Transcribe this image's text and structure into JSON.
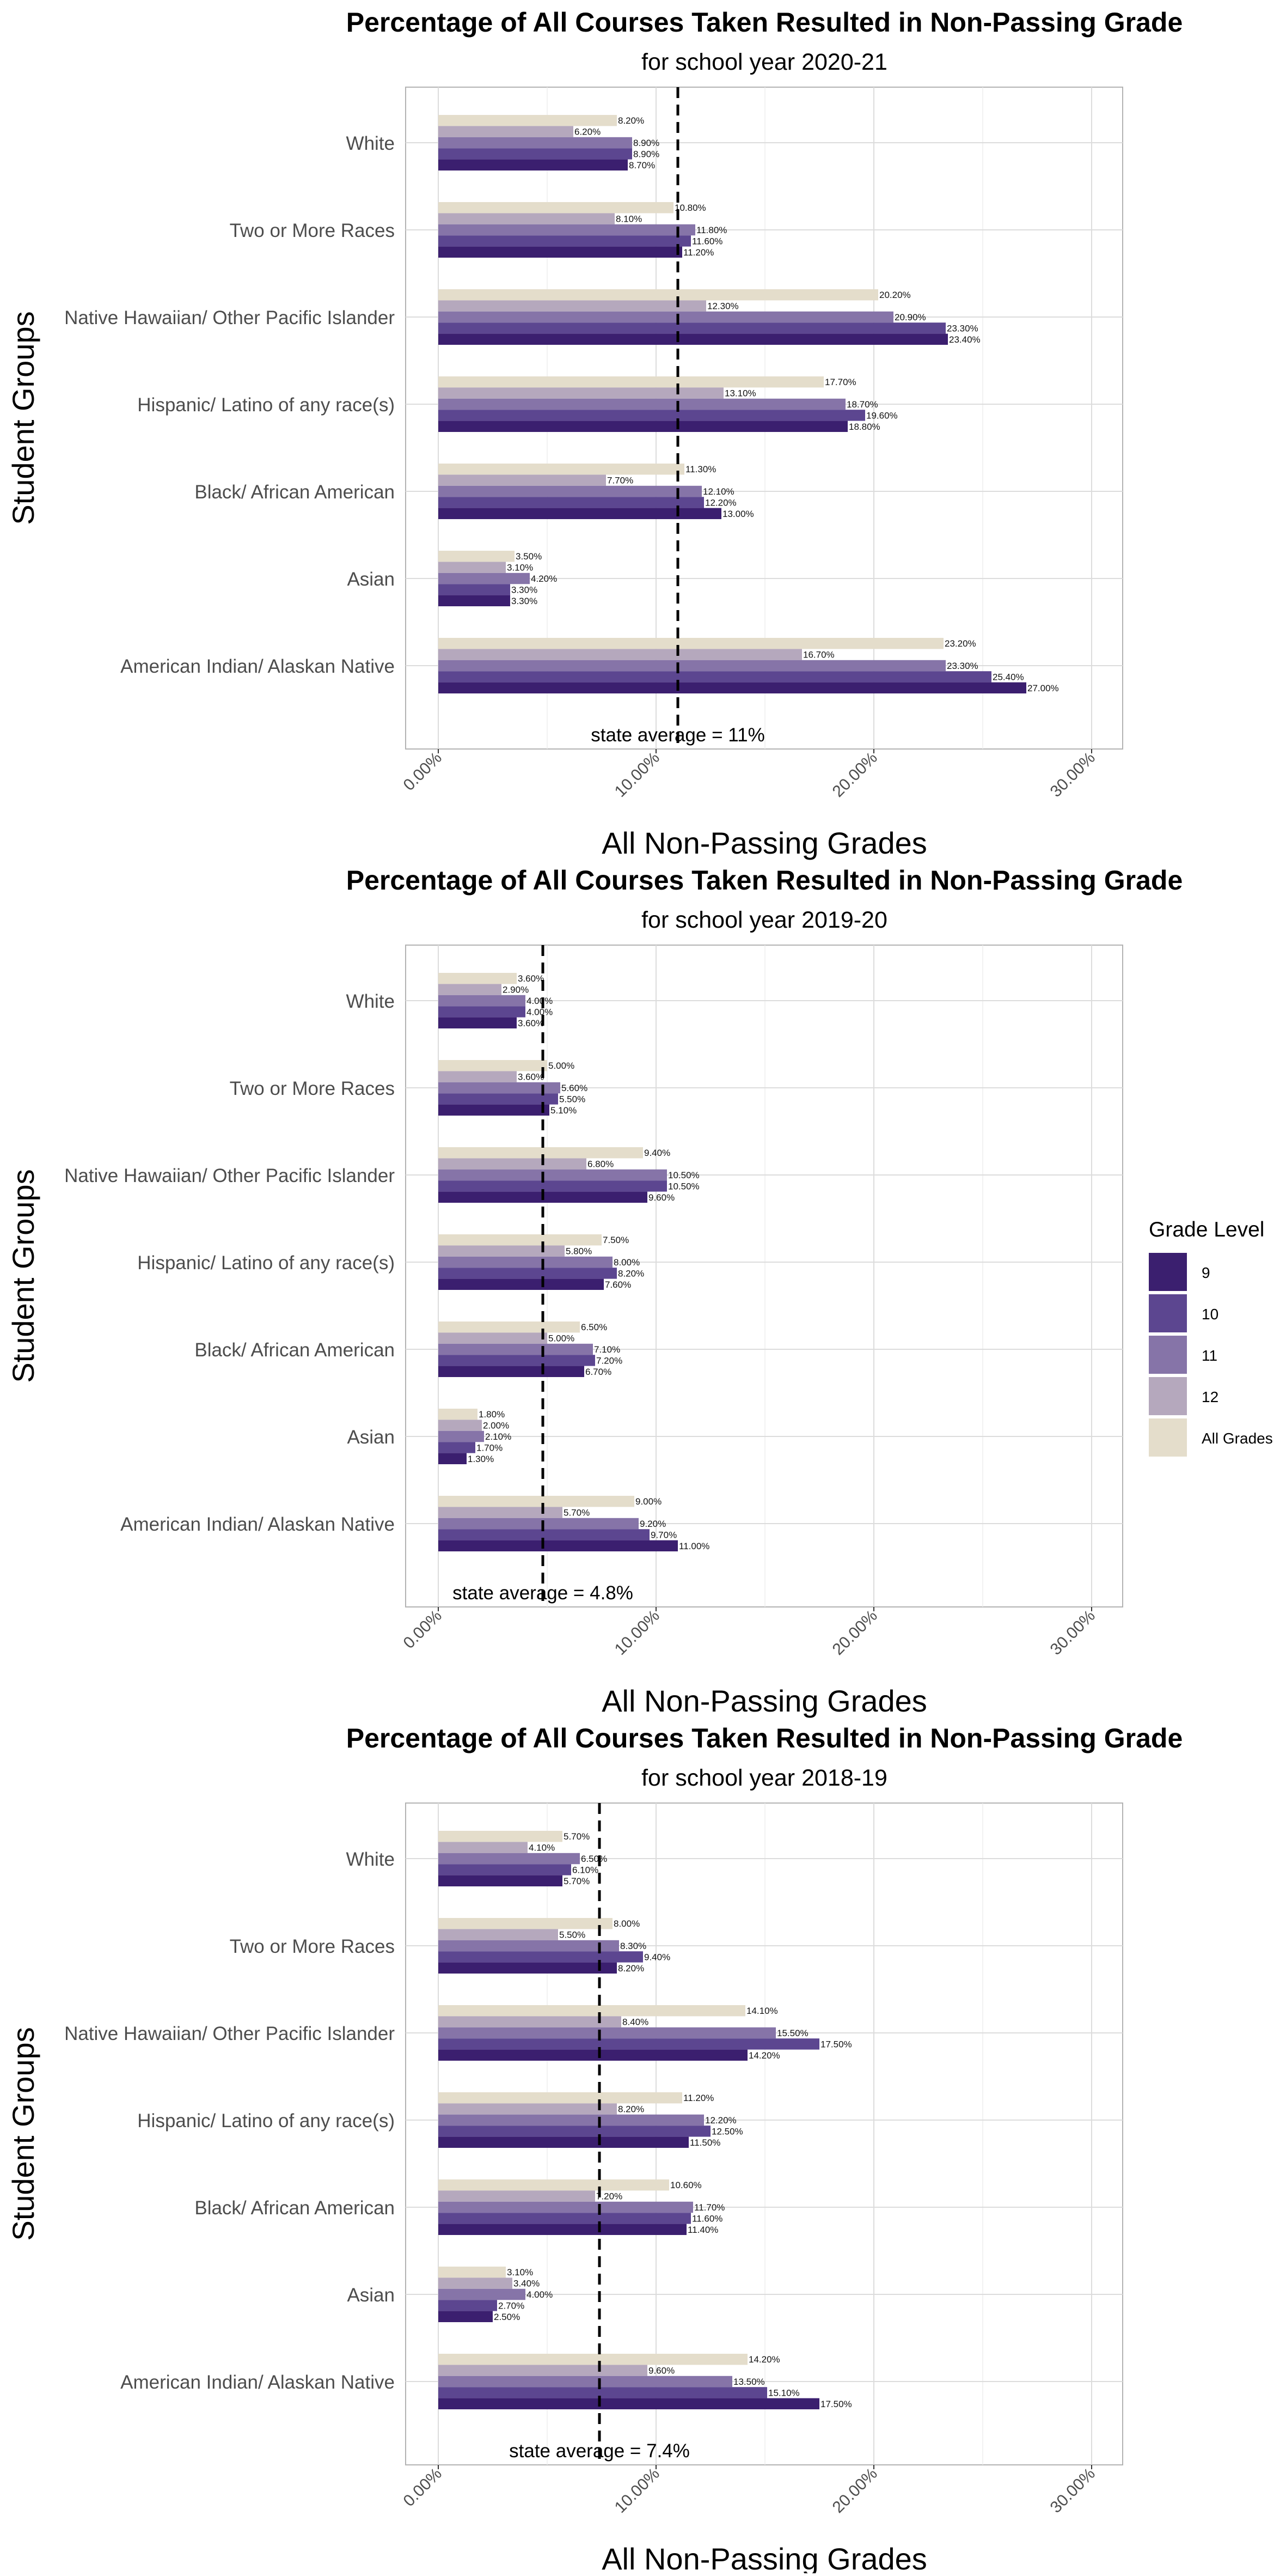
{
  "chart_data": [
    {
      "type": "bar",
      "orientation": "horizontal",
      "title": "Percentage of All Courses Taken Resulted in Non-Passing Grade",
      "subtitle": "for school year 2020-21",
      "xlabel": "All Non-Passing Grades",
      "ylabel": "Student Groups",
      "xlim": [
        0,
        30
      ],
      "xticks": [
        "0.00%",
        "10.00%",
        "20.00%",
        "30.00%"
      ],
      "grid": true,
      "reference_line": {
        "value": 11,
        "label": "state average = 11%"
      },
      "categories": [
        "White",
        "Two or More Races",
        "Native Hawaiian/ Other Pacific Islander",
        "Hispanic/ Latino of any race(s)",
        "Black/ African American",
        "Asian",
        "American Indian/ Alaskan Native"
      ],
      "series": [
        {
          "name": "All Grades",
          "values": [
            8.2,
            10.8,
            20.2,
            17.7,
            11.3,
            3.5,
            23.2
          ],
          "labels": [
            "8.20%",
            "10.80%",
            "20.20%",
            "17.70%",
            "11.30%",
            "3.50%",
            "23.20%"
          ]
        },
        {
          "name": "12",
          "values": [
            6.2,
            8.1,
            12.3,
            13.1,
            7.7,
            3.1,
            16.7
          ],
          "labels": [
            "6.20%",
            "8.10%",
            "12.30%",
            "13.10%",
            "7.70%",
            "3.10%",
            "16.70%"
          ]
        },
        {
          "name": "11",
          "values": [
            8.9,
            11.8,
            20.9,
            18.7,
            12.1,
            4.2,
            23.3
          ],
          "labels": [
            "8.90%",
            "11.80%",
            "20.90%",
            "18.70%",
            "12.10%",
            "4.20%",
            "23.30%"
          ]
        },
        {
          "name": "10",
          "values": [
            8.9,
            11.6,
            23.3,
            19.6,
            12.2,
            3.3,
            25.4
          ],
          "labels": [
            "8.90%",
            "11.60%",
            "23.30%",
            "19.60%",
            "12.20%",
            "3.30%",
            "25.40%"
          ]
        },
        {
          "name": "9",
          "values": [
            8.7,
            11.2,
            23.4,
            18.8,
            13.0,
            3.3,
            27.0
          ],
          "labels": [
            "8.70%",
            "11.20%",
            "23.40%",
            "18.80%",
            "13.00%",
            "3.30%",
            "27.00%"
          ]
        }
      ]
    },
    {
      "type": "bar",
      "orientation": "horizontal",
      "title": "Percentage of All Courses Taken Resulted in Non-Passing Grade",
      "subtitle": "for school year 2019-20",
      "xlabel": "All Non-Passing Grades",
      "ylabel": "Student Groups",
      "xlim": [
        0,
        30
      ],
      "xticks": [
        "0.00%",
        "10.00%",
        "20.00%",
        "30.00%"
      ],
      "grid": true,
      "reference_line": {
        "value": 4.8,
        "label": "state average = 4.8%"
      },
      "categories": [
        "White",
        "Two or More Races",
        "Native Hawaiian/ Other Pacific Islander",
        "Hispanic/ Latino of any race(s)",
        "Black/ African American",
        "Asian",
        "American Indian/ Alaskan Native"
      ],
      "series": [
        {
          "name": "All Grades",
          "values": [
            3.6,
            5.0,
            9.4,
            7.5,
            6.5,
            1.8,
            9.0
          ],
          "labels": [
            "3.60%",
            "5.00%",
            "9.40%",
            "7.50%",
            "6.50%",
            "1.80%",
            "9.00%"
          ]
        },
        {
          "name": "12",
          "values": [
            2.9,
            3.6,
            6.8,
            5.8,
            5.0,
            2.0,
            5.7
          ],
          "labels": [
            "2.90%",
            "3.60%",
            "6.80%",
            "5.80%",
            "5.00%",
            "2.00%",
            "5.70%"
          ]
        },
        {
          "name": "11",
          "values": [
            4.0,
            5.6,
            10.5,
            8.0,
            7.1,
            2.1,
            9.2
          ],
          "labels": [
            "4.00%",
            "5.60%",
            "10.50%",
            "8.00%",
            "7.10%",
            "2.10%",
            "9.20%"
          ]
        },
        {
          "name": "10",
          "values": [
            4.0,
            5.5,
            10.5,
            8.2,
            7.2,
            1.7,
            9.7
          ],
          "labels": [
            "4.00%",
            "5.50%",
            "10.50%",
            "8.20%",
            "7.20%",
            "1.70%",
            "9.70%"
          ]
        },
        {
          "name": "9",
          "values": [
            3.6,
            5.1,
            9.6,
            7.6,
            6.7,
            1.3,
            11.0
          ],
          "labels": [
            "3.60%",
            "5.10%",
            "9.60%",
            "7.60%",
            "6.70%",
            "1.30%",
            "11.00%"
          ]
        }
      ]
    },
    {
      "type": "bar",
      "orientation": "horizontal",
      "title": "Percentage of All Courses Taken Resulted in Non-Passing Grade",
      "subtitle": "for school year 2018-19",
      "xlabel": "All Non-Passing Grades",
      "ylabel": "Student Groups",
      "xlim": [
        0,
        30
      ],
      "xticks": [
        "0.00%",
        "10.00%",
        "20.00%",
        "30.00%"
      ],
      "grid": true,
      "reference_line": {
        "value": 7.4,
        "label": "state average = 7.4%"
      },
      "categories": [
        "White",
        "Two or More Races",
        "Native Hawaiian/ Other Pacific Islander",
        "Hispanic/ Latino of any race(s)",
        "Black/ African American",
        "Asian",
        "American Indian/ Alaskan Native"
      ],
      "series": [
        {
          "name": "All Grades",
          "values": [
            5.7,
            8.0,
            14.1,
            11.2,
            10.6,
            3.1,
            14.2
          ],
          "labels": [
            "5.70%",
            "8.00%",
            "14.10%",
            "11.20%",
            "10.60%",
            "3.10%",
            "14.20%"
          ]
        },
        {
          "name": "12",
          "values": [
            4.1,
            5.5,
            8.4,
            8.2,
            7.2,
            3.4,
            9.6
          ],
          "labels": [
            "4.10%",
            "5.50%",
            "8.40%",
            "8.20%",
            "7.20%",
            "3.40%",
            "9.60%"
          ]
        },
        {
          "name": "11",
          "values": [
            6.5,
            8.3,
            15.5,
            12.2,
            11.7,
            4.0,
            13.5
          ],
          "labels": [
            "6.50%",
            "8.30%",
            "15.50%",
            "12.20%",
            "11.70%",
            "4.00%",
            "13.50%"
          ]
        },
        {
          "name": "10",
          "values": [
            6.1,
            9.4,
            17.5,
            12.5,
            11.6,
            2.7,
            15.1
          ],
          "labels": [
            "6.10%",
            "9.40%",
            "17.50%",
            "12.50%",
            "11.60%",
            "2.70%",
            "15.10%"
          ]
        },
        {
          "name": "9",
          "values": [
            5.7,
            8.2,
            14.2,
            11.5,
            11.4,
            2.5,
            17.5
          ],
          "labels": [
            "5.70%",
            "8.20%",
            "14.20%",
            "11.50%",
            "11.40%",
            "2.50%",
            "17.50%"
          ]
        }
      ]
    }
  ],
  "legend": {
    "title": "Grade Level",
    "placement": "right",
    "items": [
      {
        "label": "9",
        "color": "#3b1f6f"
      },
      {
        "label": "10",
        "color": "#5c4690"
      },
      {
        "label": "11",
        "color": "#8674a8"
      },
      {
        "label": "12",
        "color": "#b5a8bd"
      },
      {
        "label": "All Grades",
        "color": "#e4ddcb"
      }
    ]
  },
  "colors": {
    "All Grades": "#e4ddcb",
    "12": "#b5a8bd",
    "11": "#8674a8",
    "10": "#5c4690",
    "9": "#3b1f6f"
  }
}
